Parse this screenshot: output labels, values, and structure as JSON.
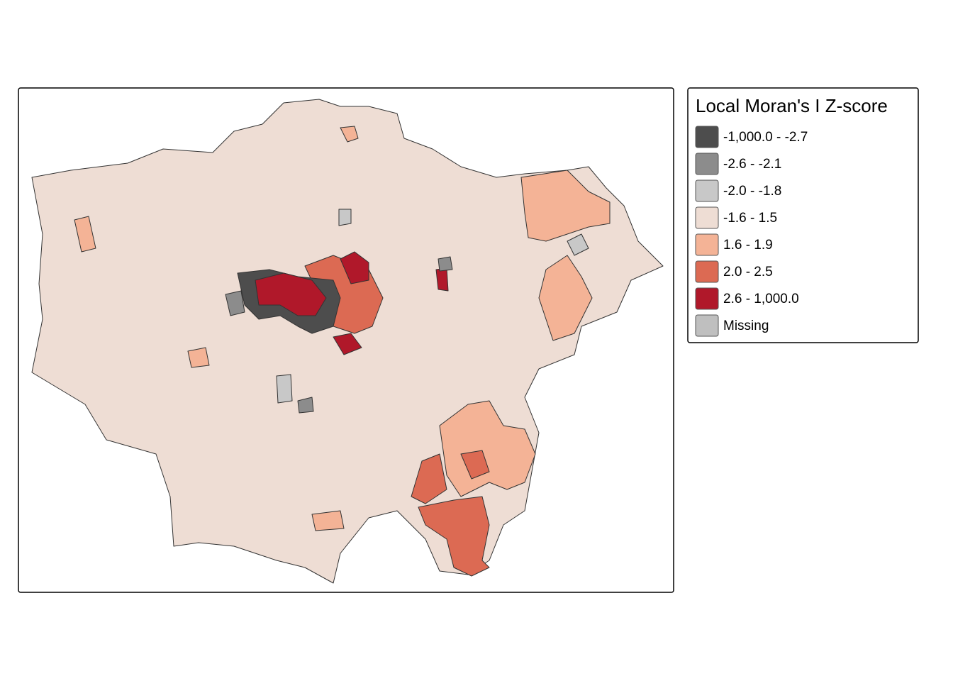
{
  "legend": {
    "title": "Local Moran's I Z-score",
    "items": [
      {
        "label": "-1,000.0 - -2.7",
        "color": "#4d4d4d"
      },
      {
        "label": "-2.6 - -2.1",
        "color": "#8c8c8c"
      },
      {
        "label": "-2.0 - -1.8",
        "color": "#c8c8c8"
      },
      {
        "label": "-1.6 - 1.5",
        "color": "#eeddd4"
      },
      {
        "label": "1.6 - 1.9",
        "color": "#f4b396"
      },
      {
        "label": "2.0 - 2.5",
        "color": "#dc6a53"
      },
      {
        "label": "2.6 - 1,000.0",
        "color": "#b0182a"
      },
      {
        "label": "Missing",
        "color": "#bfbfbf"
      }
    ]
  }
}
